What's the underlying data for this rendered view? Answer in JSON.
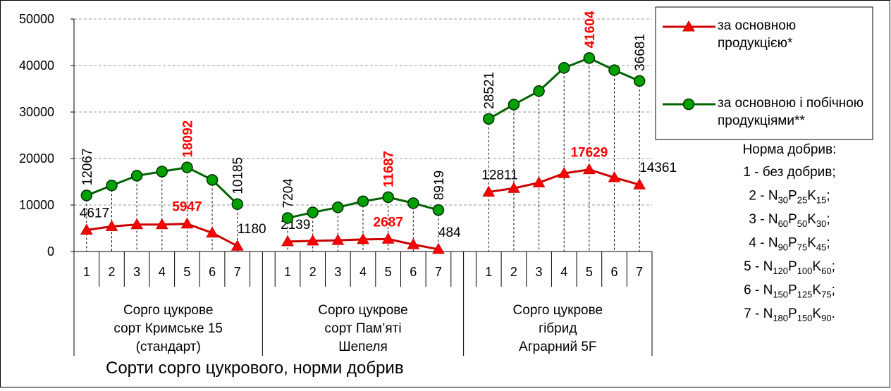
{
  "chart_data": {
    "type": "line",
    "x_title": "Сорти сорго цукрового, норми добрив",
    "categories": [
      "1",
      "2",
      "3",
      "4",
      "5",
      "6",
      "7",
      null,
      "1",
      "2",
      "3",
      "4",
      "5",
      "6",
      "7",
      null,
      "1",
      "2",
      "3",
      "4",
      "5",
      "6",
      "7"
    ],
    "groups": [
      [
        "Сорго цукрове",
        "сорт  Кримське 15",
        "(стандарт)"
      ],
      [
        "Сорго цукрове",
        "сорт Пам’яті",
        "Шепеля"
      ],
      [
        "Сорго цукрове",
        "гібрид",
        "Аграрний 5F"
      ]
    ],
    "series": [
      {
        "name": "за основною продукцією*",
        "color": "#cc0000",
        "marker": "triangle",
        "marker_color": "#ff0000",
        "values": [
          4617,
          5400,
          5800,
          5800,
          5947,
          4000,
          1180,
          null,
          2139,
          2300,
          2400,
          2600,
          2687,
          1500,
          484,
          null,
          12811,
          13600,
          14800,
          16800,
          17629,
          15900,
          14361
        ],
        "value_labels": [
          "4617",
          null,
          null,
          null,
          "5947",
          null,
          "1180",
          null,
          "2139",
          null,
          null,
          null,
          "2687",
          null,
          "484",
          null,
          "12811",
          null,
          null,
          null,
          "17629",
          null,
          "14361"
        ]
      },
      {
        "name": "за основною і побічною продукціями**",
        "color": "#006400",
        "marker": "circle",
        "marker_color": "#00a000",
        "values": [
          12067,
          14200,
          16300,
          17200,
          18092,
          15400,
          10185,
          null,
          7204,
          8400,
          9500,
          10800,
          11687,
          10400,
          8919,
          null,
          28521,
          31600,
          34500,
          39500,
          41604,
          39000,
          36681
        ],
        "value_labels": [
          "12067",
          null,
          null,
          null,
          "18092",
          null,
          "10185",
          null,
          "7204",
          null,
          null,
          null,
          "11687",
          null,
          "8919",
          null,
          "28521",
          null,
          null,
          null,
          "41604",
          null,
          "36681"
        ]
      }
    ],
    "highlight_color": "#ff0000",
    "ylim": [
      0,
      50000
    ],
    "yticks": [
      0,
      10000,
      20000,
      30000,
      40000,
      50000
    ],
    "grid": true,
    "norm_title": "Норма добрив:",
    "norms": [
      [
        "1 - без добрив;"
      ],
      [
        "2 - N",
        "30",
        "P",
        "25",
        "K",
        "15",
        ";"
      ],
      [
        "3 - N",
        "60",
        "P",
        "50",
        "K",
        "30",
        ";"
      ],
      [
        "4 - N",
        "90",
        "P",
        "75",
        "K",
        "45",
        ";"
      ],
      [
        "5 - N",
        "120",
        "P",
        "100",
        "K",
        "60",
        ";"
      ],
      [
        "6 - N",
        "150",
        "P",
        "125",
        "K",
        "75",
        ";"
      ],
      [
        "7 - N",
        "180",
        "P",
        "150",
        "K",
        "90",
        "."
      ]
    ]
  }
}
